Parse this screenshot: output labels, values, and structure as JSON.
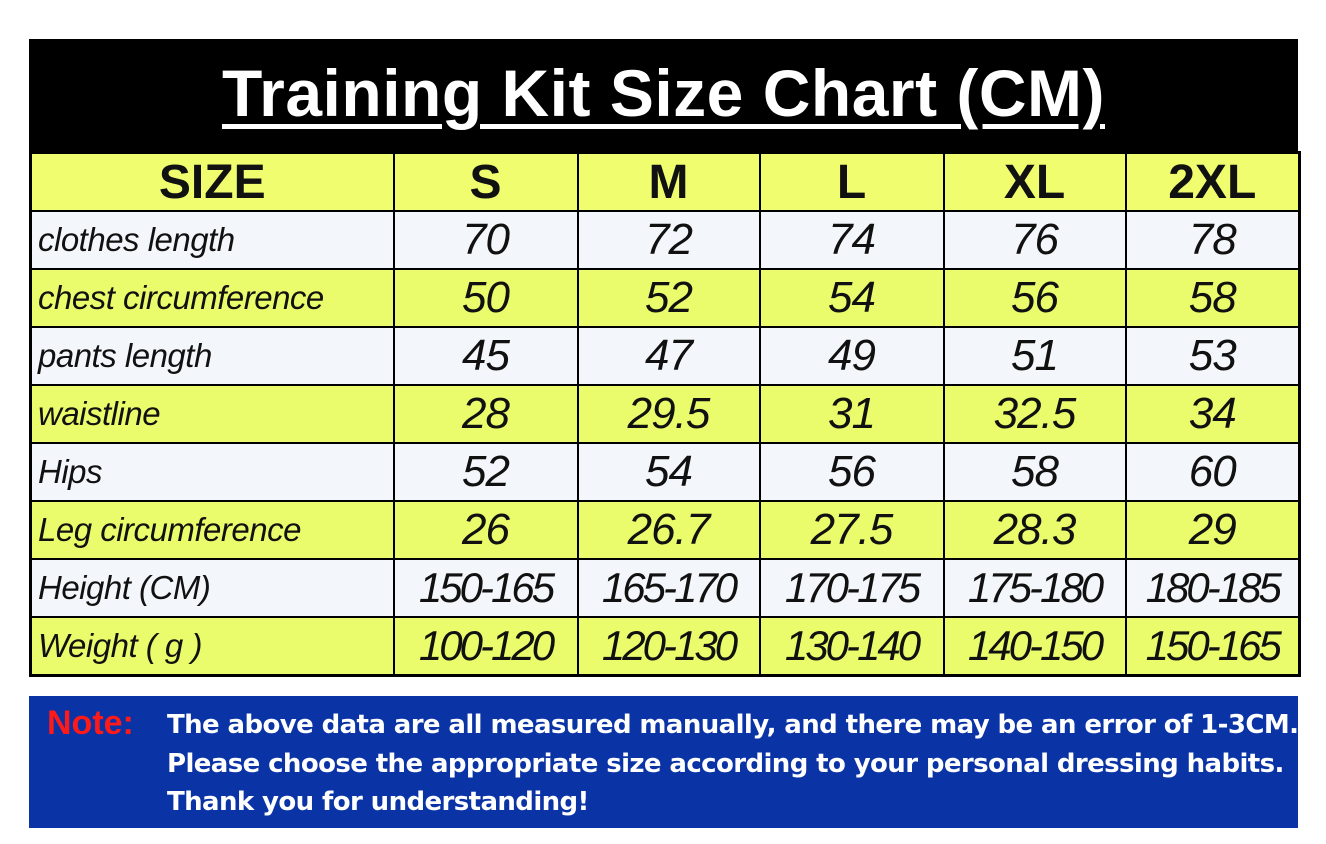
{
  "title": "Training Kit Size Chart (CM)",
  "table": {
    "header": [
      "SIZE",
      "S",
      "M",
      "L",
      "XL",
      "2XL"
    ],
    "rows": [
      {
        "label": "clothes length",
        "values": [
          "70",
          "72",
          "74",
          "76",
          "78"
        ]
      },
      {
        "label": "chest circumference",
        "values": [
          "50",
          "52",
          "54",
          "56",
          "58"
        ]
      },
      {
        "label": "pants length",
        "values": [
          "45",
          "47",
          "49",
          "51",
          "53"
        ]
      },
      {
        "label": "waistline",
        "values": [
          "28",
          "29.5",
          "31",
          "32.5",
          "34"
        ]
      },
      {
        "label": "Hips",
        "values": [
          "52",
          "54",
          "56",
          "58",
          "60"
        ]
      },
      {
        "label": "Leg circumference",
        "values": [
          "26",
          "26.7",
          "27.5",
          "28.3",
          "29"
        ]
      },
      {
        "label": "Height (CM)",
        "values": [
          "150-165",
          "165-170",
          "170-175",
          "175-180",
          "180-185"
        ]
      },
      {
        "label": "Weight ( g )",
        "values": [
          "100-120",
          "120-130",
          "130-140",
          "140-150",
          "150-165"
        ]
      }
    ]
  },
  "note": {
    "label": "Note:",
    "lines": [
      "The above data are all measured manually, and there may be an error of 1-3CM.",
      "Please choose the appropriate size according to your personal dressing habits.",
      "Thank you for understanding!"
    ]
  },
  "colors": {
    "title_bg": "#000000",
    "header_bg": "#f0fd6e",
    "row_alt_bg": "#eafb6b",
    "row_bg": "#f3f6fa",
    "note_bg": "#0a33a6",
    "note_label": "#ff1a1a"
  }
}
